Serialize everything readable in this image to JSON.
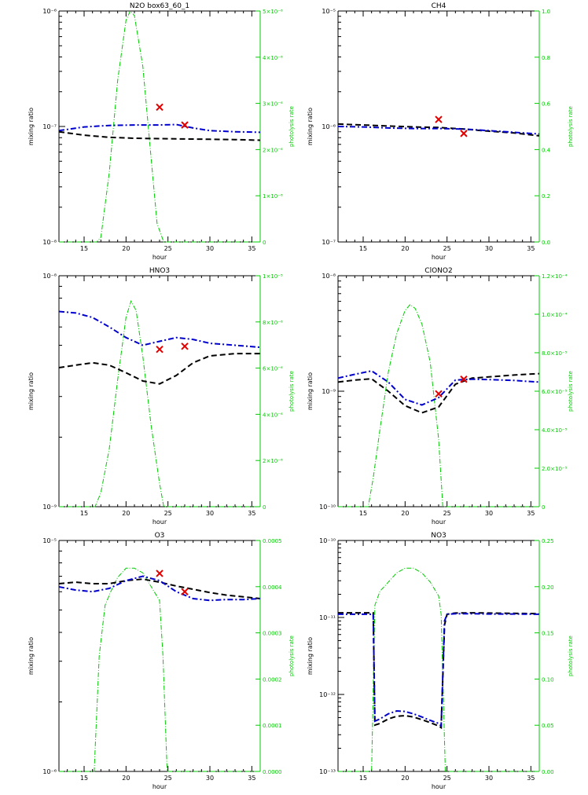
{
  "figure": {
    "background": "#ffffff"
  },
  "colors": {
    "model": "#000000",
    "model2": "#0000cc",
    "photolysis": "#00cc00",
    "obs": "#e00000"
  },
  "chart_data": [
    {
      "type": "line",
      "title": "N2O box63_60_1",
      "xlabel": "hour",
      "ylabel": "mixing ratio",
      "y2label": "photolysis rate",
      "xlim": [
        12,
        36
      ],
      "xticks": [
        15,
        20,
        25,
        30,
        35
      ],
      "ylog": true,
      "ylim": [
        1e-08,
        1e-06
      ],
      "ytick_labels": [
        "10⁻⁸",
        "10⁻⁷",
        "10⁻⁶"
      ],
      "y2lim": [
        0,
        5e-06
      ],
      "y2ticks": [
        0,
        1e-06,
        2e-06,
        3e-06,
        4e-06,
        5e-06
      ],
      "y2tick_labels": [
        "0",
        "1×10⁻⁶",
        "2×10⁻⁶",
        "3×10⁻⁶",
        "4×10⁻⁶",
        "5×10⁻⁶"
      ],
      "photolysis": {
        "x": [
          12,
          16.5,
          17,
          18,
          19,
          20,
          20.5,
          21,
          22,
          23,
          23.7,
          24.5,
          36
        ],
        "y": [
          0,
          0,
          1e-07,
          1.5e-06,
          3.5e-06,
          4.8e-06,
          5e-06,
          4.9e-06,
          3.8e-06,
          1.8e-06,
          4e-07,
          0,
          0
        ]
      },
      "series": [
        {
          "style": "black-dash",
          "x": [
            12,
            15,
            18,
            21,
            24,
            27,
            30,
            33,
            36
          ],
          "y": [
            9e-08,
            8.4e-08,
            8.05e-08,
            7.9e-08,
            7.85e-08,
            7.8e-08,
            7.75e-08,
            7.7e-08,
            7.6e-08
          ]
        },
        {
          "style": "blue-dashdot",
          "x": [
            12,
            15,
            18,
            21,
            24,
            26,
            28,
            30,
            33,
            36
          ],
          "y": [
            9.2e-08,
            9.9e-08,
            1.02e-07,
            1.03e-07,
            1.03e-07,
            1.04e-07,
            9.7e-08,
            9.2e-08,
            9e-08,
            8.9e-08
          ]
        }
      ],
      "observations": {
        "x": [
          24,
          27
        ],
        "y": [
          1.47e-07,
          1.03e-07
        ]
      }
    },
    {
      "type": "line",
      "title": "CH4",
      "xlabel": "hour",
      "ylabel": "mixing ratio",
      "y2label": "photolysis rate",
      "xlim": [
        12,
        36
      ],
      "xticks": [
        15,
        20,
        25,
        30,
        35
      ],
      "ylog": true,
      "ylim": [
        1e-07,
        1e-05
      ],
      "ytick_labels": [
        "10⁻⁷",
        "10⁻⁶",
        "10⁻⁵"
      ],
      "y2lim": [
        0,
        1.0
      ],
      "y2ticks": [
        0,
        0.2,
        0.4,
        0.6,
        0.8,
        1.0
      ],
      "y2tick_labels": [
        "0.0",
        "0.2",
        "0.4",
        "0.6",
        "0.8",
        "1.0"
      ],
      "photolysis": null,
      "series": [
        {
          "style": "black-dash",
          "x": [
            12,
            15,
            18,
            21,
            24,
            27,
            30,
            33,
            36
          ],
          "y": [
            1.05e-06,
            1.03e-06,
            1.01e-06,
            9.9e-07,
            9.8e-07,
            9.5e-07,
            9.1e-07,
            8.8e-07,
            8.3e-07
          ]
        },
        {
          "style": "blue-dashdot",
          "x": [
            12,
            15,
            18,
            21,
            24,
            27,
            30,
            33,
            36
          ],
          "y": [
            1e-06,
            9.9e-07,
            9.7e-07,
            9.6e-07,
            9.6e-07,
            9.5e-07,
            9.2e-07,
            8.9e-07,
            8.6e-07
          ]
        }
      ],
      "observations": {
        "x": [
          24,
          27
        ],
        "y": [
          1.15e-06,
          8.7e-07
        ]
      }
    },
    {
      "type": "line",
      "title": "HNO3",
      "xlabel": "hour",
      "ylabel": "mixing ratio",
      "y2label": "photolysis rate",
      "xlim": [
        12,
        36
      ],
      "xticks": [
        15,
        20,
        25,
        30,
        35
      ],
      "ylog": true,
      "ylim": [
        1e-09,
        1e-08
      ],
      "ytick_labels": [
        "10⁻⁹",
        "10⁻⁸"
      ],
      "y2lim": [
        0,
        1e-05
      ],
      "y2ticks": [
        0,
        2e-06,
        4e-06,
        6e-06,
        8e-06,
        1e-05
      ],
      "y2tick_labels": [
        "0",
        "2×10⁻⁶",
        "4×10⁻⁶",
        "6×10⁻⁶",
        "8×10⁻⁶",
        "1×10⁻⁵"
      ],
      "photolysis": {
        "x": [
          12,
          16.3,
          17,
          18,
          19,
          20,
          20.6,
          21.2,
          22,
          23,
          24,
          24.5,
          36
        ],
        "y": [
          0,
          0,
          6e-07,
          2.5e-06,
          5.5e-06,
          8.2e-06,
          8.9e-06,
          8.5e-06,
          6.5e-06,
          3.5e-06,
          1e-06,
          0,
          0
        ]
      },
      "series": [
        {
          "style": "black-dash",
          "x": [
            12,
            14,
            16,
            18,
            20,
            22,
            24,
            26,
            28,
            30,
            33,
            36
          ],
          "y": [
            4e-09,
            4.1e-09,
            4.2e-09,
            4.1e-09,
            3.8e-09,
            3.5e-09,
            3.4e-09,
            3.7e-09,
            4.2e-09,
            4.5e-09,
            4.6e-09,
            4.6e-09
          ]
        },
        {
          "style": "blue-dashdot",
          "x": [
            12,
            14,
            16,
            18,
            20,
            22,
            24,
            26,
            28,
            30,
            33,
            36
          ],
          "y": [
            7e-09,
            6.9e-09,
            6.6e-09,
            6e-09,
            5.4e-09,
            5e-09,
            5.2e-09,
            5.4e-09,
            5.3e-09,
            5.1e-09,
            5e-09,
            4.9e-09
          ]
        }
      ],
      "observations": {
        "x": [
          24,
          27
        ],
        "y": [
          4.8e-09,
          4.95e-09
        ]
      }
    },
    {
      "type": "line",
      "title": "ClONO2",
      "xlabel": "hour",
      "ylabel": "mixing ratio",
      "y2label": "photolysis rate",
      "xlim": [
        12,
        36
      ],
      "xticks": [
        15,
        20,
        25,
        30,
        35
      ],
      "ylog": true,
      "ylim": [
        1e-10,
        1e-08
      ],
      "ytick_labels": [
        "10⁻¹⁰",
        "10⁻⁹",
        "10⁻⁸"
      ],
      "y2lim": [
        0,
        0.00012
      ],
      "y2ticks": [
        0,
        2e-05,
        4e-05,
        6e-05,
        8e-05,
        0.0001,
        0.00012
      ],
      "y2tick_labels": [
        "0",
        "2.0×10⁻⁵",
        "4.0×10⁻⁵",
        "6.0×10⁻⁵",
        "8.0×10⁻⁵",
        "1.0×10⁻⁴",
        "1.2×10⁻⁴"
      ],
      "photolysis": {
        "x": [
          12,
          15.6,
          16.2,
          17,
          18,
          19,
          20,
          20.6,
          21.2,
          22,
          23,
          24,
          24.5,
          36
        ],
        "y": [
          0,
          0,
          1.5e-05,
          4e-05,
          7e-05,
          9e-05,
          0.000102,
          0.000105,
          0.000103,
          9.5e-05,
          7.5e-05,
          3.5e-05,
          0,
          0
        ]
      },
      "series": [
        {
          "style": "black-dash",
          "x": [
            12,
            14,
            16,
            18,
            20,
            22,
            24,
            26,
            28,
            30,
            33,
            36
          ],
          "y": [
            1.2e-09,
            1.25e-09,
            1.28e-09,
            1e-09,
            7.5e-10,
            6.5e-10,
            7.3e-10,
            1.15e-09,
            1.3e-09,
            1.33e-09,
            1.38e-09,
            1.42e-09
          ]
        },
        {
          "style": "blue-dashdot",
          "x": [
            12,
            14,
            16,
            18,
            20,
            22,
            24,
            26,
            28,
            30,
            33,
            36
          ],
          "y": [
            1.3e-09,
            1.4e-09,
            1.5e-09,
            1.2e-09,
            8.5e-10,
            7.6e-10,
            8.8e-10,
            1.25e-09,
            1.27e-09,
            1.26e-09,
            1.24e-09,
            1.2e-09
          ]
        }
      ],
      "observations": {
        "x": [
          24,
          27
        ],
        "y": [
          9.5e-10,
          1.27e-09
        ]
      }
    },
    {
      "type": "line",
      "title": "O3",
      "xlabel": "hour",
      "ylabel": "mixing ratio",
      "y2label": "photolysis rate",
      "xlim": [
        12,
        36
      ],
      "xticks": [
        15,
        20,
        25,
        30,
        35
      ],
      "ylog": true,
      "ylim": [
        1e-06,
        1e-05
      ],
      "ytick_labels": [
        "10⁻⁶",
        "10⁻⁵"
      ],
      "y2lim": [
        0,
        0.0005
      ],
      "y2ticks": [
        0,
        0.0001,
        0.0002,
        0.0003,
        0.0004,
        0.0005
      ],
      "y2tick_labels": [
        "0.0000",
        "0.0001",
        "0.0002",
        "0.0003",
        "0.0004",
        "0.0005"
      ],
      "photolysis": {
        "x": [
          12,
          16.2,
          16.8,
          17.5,
          18.2,
          19,
          20,
          21,
          22,
          23,
          24,
          24.4,
          24.9,
          36
        ],
        "y": [
          0,
          0,
          0.00025,
          0.00036,
          0.00039,
          0.00042,
          0.00044,
          0.00044,
          0.00043,
          0.0004,
          0.00037,
          0.00025,
          0,
          0
        ]
      },
      "series": [
        {
          "style": "black-dash",
          "x": [
            12,
            14,
            16,
            18,
            20,
            22,
            24,
            26,
            28,
            30,
            32,
            34,
            36
          ],
          "y": [
            6.5e-06,
            6.6e-06,
            6.5e-06,
            6.5e-06,
            6.7e-06,
            6.8e-06,
            6.6e-06,
            6.35e-06,
            6.15e-06,
            5.95e-06,
            5.8e-06,
            5.7e-06,
            5.6e-06
          ]
        },
        {
          "style": "blue-dashdot",
          "x": [
            12,
            14,
            16,
            18,
            20,
            22,
            24,
            26,
            28,
            30,
            32,
            34,
            36
          ],
          "y": [
            6.3e-06,
            6.1e-06,
            6e-06,
            6.2e-06,
            6.7e-06,
            7e-06,
            6.7e-06,
            6e-06,
            5.6e-06,
            5.5e-06,
            5.55e-06,
            5.55e-06,
            5.6e-06
          ]
        }
      ],
      "observations": {
        "x": [
          24,
          27
        ],
        "y": [
          7.2e-06,
          6e-06
        ]
      }
    },
    {
      "type": "line",
      "title": "NO3",
      "xlabel": "hour",
      "ylabel": "mixing ratio",
      "y2label": "photolysis rate",
      "xlim": [
        12,
        36
      ],
      "xticks": [
        15,
        20,
        25,
        30,
        35
      ],
      "ylog": true,
      "ylim": [
        1e-13,
        1e-10
      ],
      "ytick_labels": [
        "10⁻¹³",
        "10⁻¹²",
        "10⁻¹¹",
        "10⁻¹⁰"
      ],
      "y2lim": [
        0,
        0.25
      ],
      "y2ticks": [
        0,
        0.05,
        0.1,
        0.15,
        0.2,
        0.25
      ],
      "y2tick_labels": [
        "0.00",
        "0.05",
        "0.10",
        "0.15",
        "0.20",
        "0.25"
      ],
      "photolysis": {
        "x": [
          12,
          16,
          16.4,
          17,
          18,
          19,
          20,
          21,
          22,
          23,
          24,
          24.3,
          24.8,
          36
        ],
        "y": [
          0,
          0,
          0.18,
          0.195,
          0.205,
          0.215,
          0.22,
          0.22,
          0.215,
          0.205,
          0.19,
          0.17,
          0,
          0
        ]
      },
      "series": [
        {
          "style": "black-dash",
          "x": [
            12,
            14,
            16.2,
            16.4,
            17,
            18,
            19,
            20,
            21,
            22,
            23,
            24,
            24.3,
            24.7,
            25,
            26,
            28,
            30,
            33,
            36
          ],
          "y": [
            1.15e-11,
            1.15e-11,
            1.15e-11,
            4e-13,
            4.2e-13,
            4.8e-13,
            5.2e-13,
            5.3e-13,
            5.1e-13,
            4.7e-13,
            4.3e-13,
            3.9e-13,
            3.7e-13,
            8e-12,
            1.1e-11,
            1.14e-11,
            1.15e-11,
            1.14e-11,
            1.13e-11,
            1.12e-11
          ]
        },
        {
          "style": "blue-dashdot",
          "x": [
            12,
            14,
            16.2,
            16.4,
            17,
            18,
            19,
            20,
            21,
            22,
            23,
            24,
            24.3,
            24.7,
            25,
            26,
            28,
            30,
            33,
            36
          ],
          "y": [
            1.1e-11,
            1.1e-11,
            1.1e-11,
            4.5e-13,
            4.8e-13,
            5.6e-13,
            6.1e-13,
            6e-13,
            5.6e-13,
            5.1e-13,
            4.6e-13,
            4.2e-13,
            3.9e-13,
            9e-12,
            1.1e-11,
            1.12e-11,
            1.12e-11,
            1.11e-11,
            1.11e-11,
            1.1e-11
          ]
        }
      ],
      "observations": null
    }
  ]
}
